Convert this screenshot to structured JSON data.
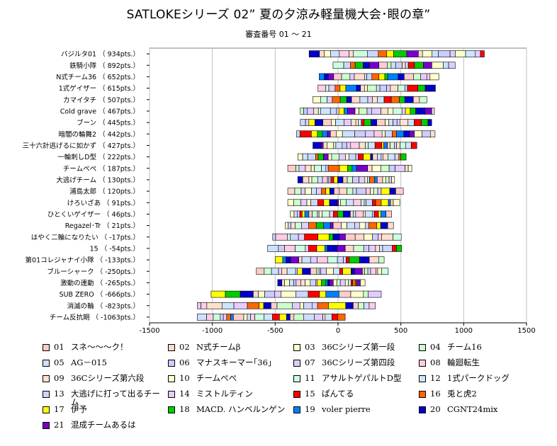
{
  "title": "SATLOKEシリーズ 02” 夏の夕涼み軽量機大会･眼の章”",
  "subtitle": "審査番号 01 ～ 21",
  "chart_data": {
    "type": "bar",
    "stacked": true,
    "orientation": "horizontal",
    "xlim": [
      -1500,
      1500
    ],
    "x_ticks": [
      "-1500",
      "-1000",
      "-500",
      "0",
      "500",
      "1000",
      "1500"
    ],
    "grid": true,
    "legend_position": "bottom",
    "categories": [
      "バジルタ01 （ 934pts.）",
      "鉄騎小隊 （ 892pts.）",
      "N式チーム36 （ 652pts.）",
      "1式ゲイザー （ 615pts.）",
      "カマイタチ （ 507pts.）",
      "Cold grave （ 467pts.）",
      "ブーン （ 445pts.）",
      "暗闇の輪舞2 （ 442pts.）",
      "三十六計逃げるに如かず （ 427pts.）",
      "一輪刺しD型 （ 222pts.）",
      "チームぺぺ （ 187pts.）",
      "大逃げチーム （ 130pts.）",
      "浦島太郎 （ 120pts.）",
      "けろいざあ （ 91pts.）",
      "ひとくいゲイザー （ 46pts.）",
      "Regazel･Tr （ 21pts.）",
      "はやく二輪になりたい （ -17pts.）",
      "15 （ -54pts.）",
      "第01コレジャナイ小隊 （ -133pts.）",
      "ブルーシャーク （ -250pts.）",
      "激動の連動 （ -265pts.）",
      "SUB ZERO （ -666pts.）",
      "消滅の輪 （ -823pts.）",
      "チーム反抗期 （ -1063pts.）"
    ],
    "totals": [
      934,
      892,
      652,
      615,
      507,
      467,
      445,
      442,
      427,
      222,
      187,
      130,
      120,
      91,
      46,
      21,
      -17,
      -54,
      -133,
      -250,
      -265,
      -666,
      -823,
      -1063
    ],
    "negative_extent": [
      -230,
      -40,
      -150,
      -160,
      -200,
      -300,
      -300,
      -330,
      -200,
      -320,
      -400,
      -320,
      -400,
      -400,
      -380,
      -420,
      -520,
      -560,
      -500,
      -650,
      -480,
      -1010,
      -1120,
      -1120
    ],
    "series": [
      {
        "id": "01",
        "name": "スネ～～～ク！",
        "color": "#FFCCCC"
      },
      {
        "id": "02",
        "name": "N式チームβ",
        "color": "#FFD9CC"
      },
      {
        "id": "03",
        "name": "36Cシリーズ第一段",
        "color": "#FFFFCC"
      },
      {
        "id": "04",
        "name": "チーム16",
        "color": "#CCFFCC"
      },
      {
        "id": "05",
        "name": "AG－015",
        "color": "#CCE0FF"
      },
      {
        "id": "06",
        "name": "マナスキーマー｢36｣",
        "color": "#CCCCFF"
      },
      {
        "id": "07",
        "name": "36Cシリーズ第四段",
        "color": "#E0CCFF"
      },
      {
        "id": "08",
        "name": "輪廻転生",
        "color": "#FFCCE6"
      },
      {
        "id": "09",
        "name": "36Cシリーズ第六段",
        "color": "#FFE0CC"
      },
      {
        "id": "10",
        "name": "チームぺぺ",
        "color": "#FFFFCC"
      },
      {
        "id": "11",
        "name": "アサルトゲパルトD型",
        "color": "#CCFFE0"
      },
      {
        "id": "12",
        "name": "1式パークドッグ",
        "color": "#CCE6FF"
      },
      {
        "id": "13",
        "name": "大逃げに打って出るチーム",
        "color": "#CCD6FF"
      },
      {
        "id": "14",
        "name": "ミストルティン",
        "color": "#E6CCFF"
      },
      {
        "id": "15",
        "name": "ぱんてる",
        "color": "#FF0000"
      },
      {
        "id": "16",
        "name": "兎と虎2",
        "color": "#FF6600"
      },
      {
        "id": "17",
        "name": "伊予",
        "color": "#FFFF00"
      },
      {
        "id": "18",
        "name": "MACD. ハンベルンゲン",
        "color": "#00CC00"
      },
      {
        "id": "19",
        "name": "voler pierre",
        "color": "#0080FF"
      },
      {
        "id": "20",
        "name": "CGNT24mix",
        "color": "#0000CC"
      },
      {
        "id": "21",
        "name": "混成チームあるは",
        "color": "#7700CC"
      }
    ]
  }
}
